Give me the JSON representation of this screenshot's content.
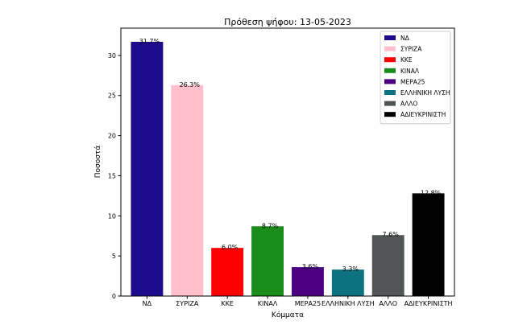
{
  "chart_data": {
    "type": "bar",
    "title": "Πρόθεση ψήφου: 13-05-2023",
    "xlabel": "Κόμματα",
    "ylabel": "Ποσοστά",
    "ylim": [
      0,
      33.4
    ],
    "yticks": [
      0,
      5,
      10,
      15,
      20,
      25,
      30
    ],
    "grid": false,
    "legend_position": "top-right",
    "categories": [
      "ΝΔ",
      "ΣΥΡΙΖΑ",
      "ΚΚΕ",
      "ΚΙΝΑΛ",
      "ΜΕΡΑ25",
      "ΕΛΛΗΝΙΚΗ ΛΥΣΗ",
      "ΑΛΛΟ",
      "ΑΔΙΕΥΚΡΙΝΙΣΤΗ"
    ],
    "values": [
      31.7,
      26.3,
      6.0,
      8.7,
      3.6,
      3.3,
      7.6,
      12.8
    ],
    "data_labels": [
      "31.7%",
      "26.3%",
      "6.0%",
      "8.7%",
      "3.6%",
      "3.3%",
      "7.6%",
      "12.8%"
    ],
    "colors": [
      "#1e0a8c",
      "#ffc0cb",
      "#ff0000",
      "#1a8c1a",
      "#4b0082",
      "#0e7380",
      "#525555",
      "#000000"
    ],
    "legend": [
      "ΝΔ",
      "ΣΥΡΙΖΑ",
      "ΚΚΕ",
      "ΚΙΝΑΛ",
      "ΜΕΡΑ25",
      "ΕΛΛΗΝΙΚΗ ΛΥΣΗ",
      "ΑΛΛΟ",
      "ΑΔΙΕΥΚΡΙΝΙΣΤΗ"
    ]
  }
}
